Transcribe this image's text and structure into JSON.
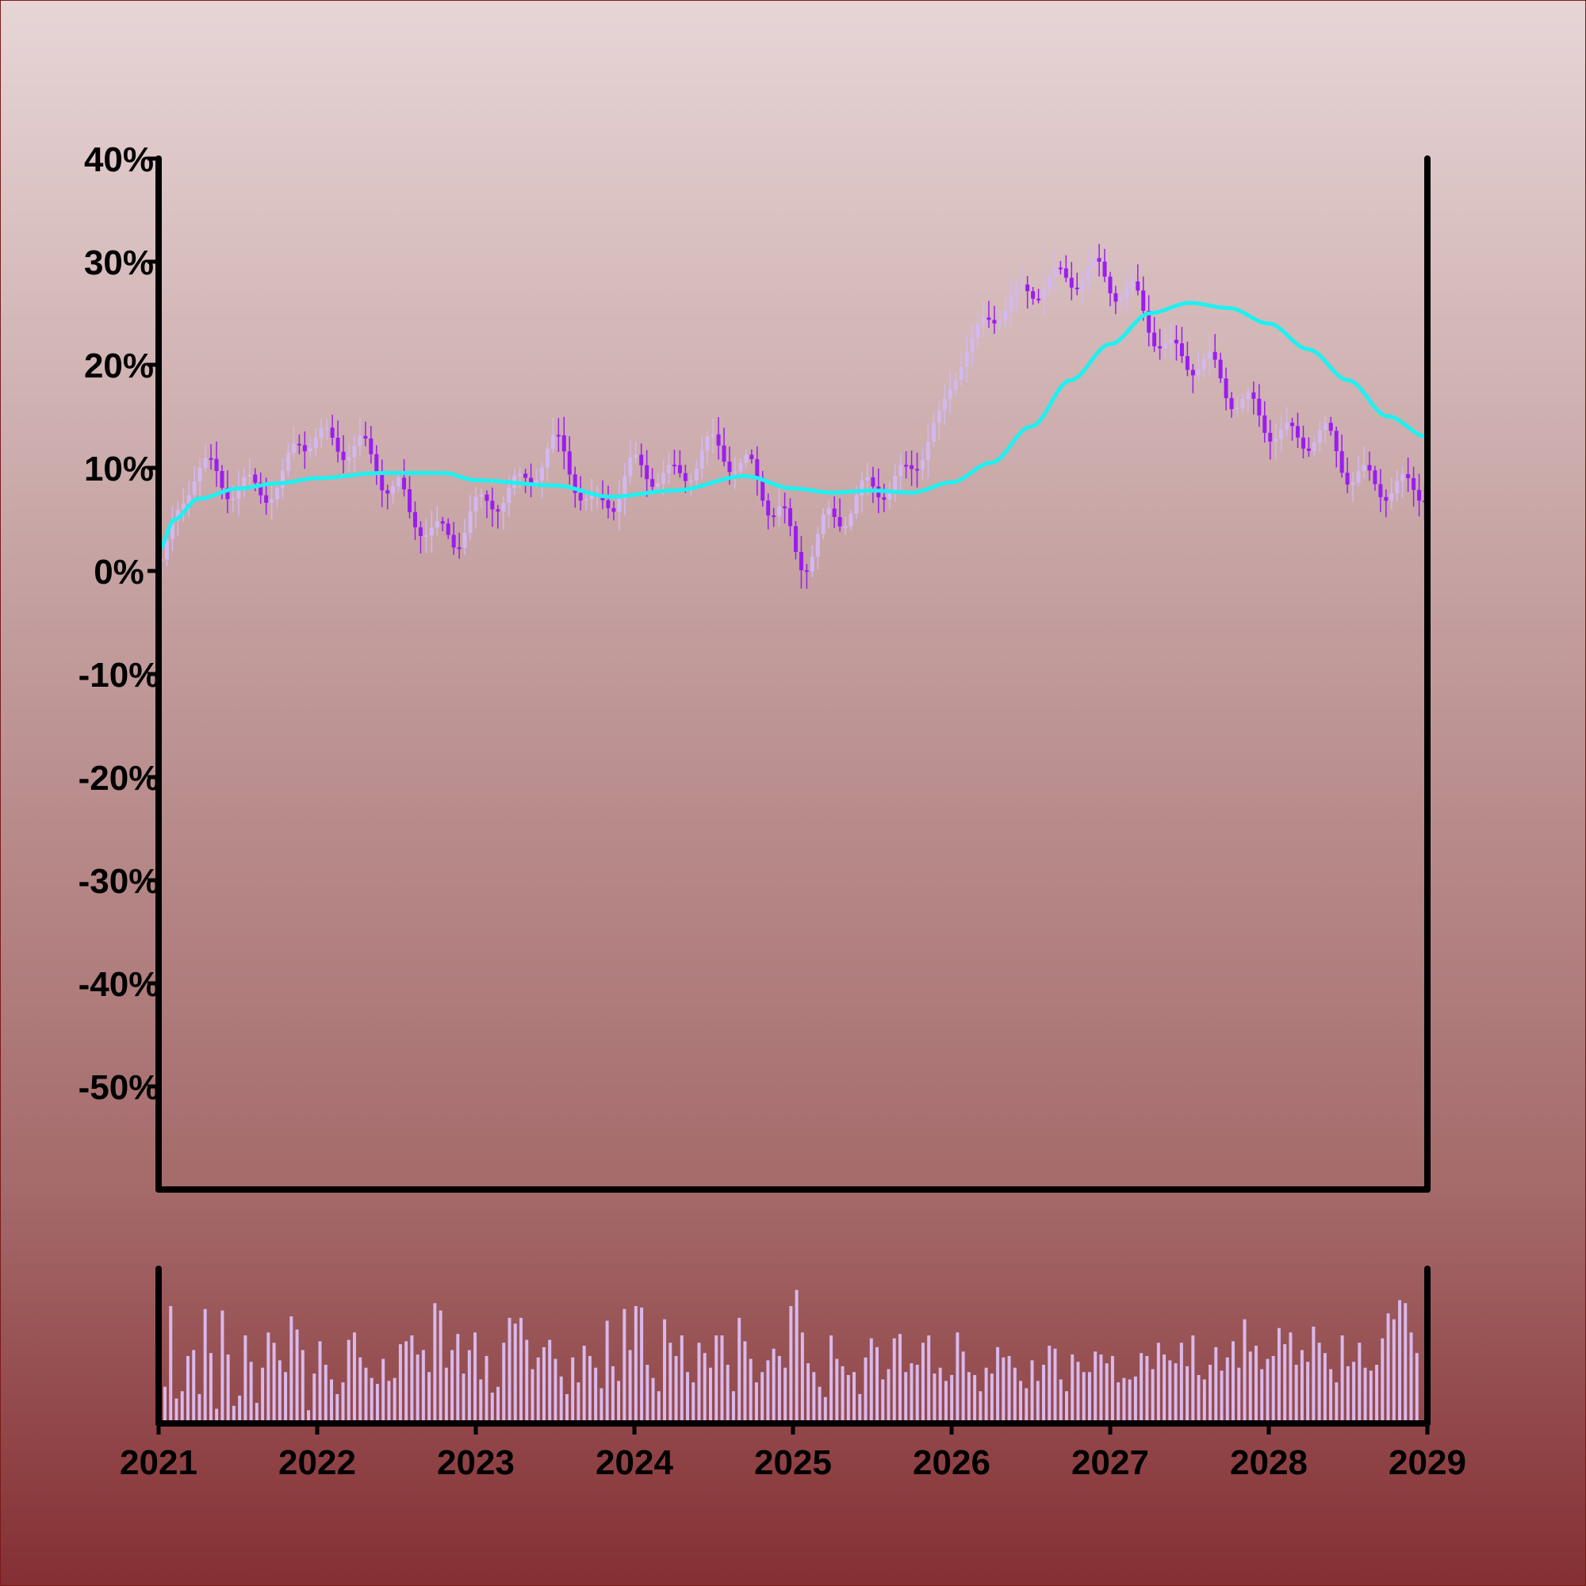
{
  "chart_data": {
    "type": "candlestick",
    "title": "",
    "xlabel": "",
    "ylabel": "",
    "x_range": [
      2021,
      2029
    ],
    "x_ticks": [
      "2021",
      "2022",
      "2023",
      "2024",
      "2025",
      "2026",
      "2027",
      "2028",
      "2029"
    ],
    "y_range": [
      -60,
      40
    ],
    "y_ticks": [
      "40%",
      "30%",
      "20%",
      "10%",
      "0%",
      "-10%",
      "-20%",
      "-30%",
      "-40%",
      "-50%"
    ],
    "y_tick_values": [
      40,
      30,
      20,
      10,
      0,
      -10,
      -20,
      -30,
      -40,
      -50
    ],
    "grid": false,
    "legend": "none",
    "colors": {
      "up_candle": "#d3b8f0",
      "down_candle": "#9b1cf2",
      "moving_average": "#1ff0f0",
      "volume": "#d9b9ec",
      "axes": "#000000"
    },
    "price_series": {
      "name": "",
      "x": [
        2021.0,
        2021.25,
        2021.5,
        2021.75,
        2021.9,
        2022.25,
        2022.5,
        2022.6,
        2022.85,
        2023.0,
        2023.25,
        2023.5,
        2023.75,
        2023.85,
        2024.0,
        2024.25,
        2024.5,
        2024.7,
        2024.9,
        2025.05,
        2025.25,
        2025.5,
        2025.7,
        2025.9,
        2026.1,
        2026.35,
        2026.6,
        2026.9,
        2027.1,
        2027.4,
        2027.6,
        2027.85,
        2028.1,
        2028.35,
        2028.55,
        2028.8,
        2029.0
      ],
      "close": [
        1,
        10,
        8,
        8,
        13,
        12,
        8,
        5,
        3,
        6,
        8,
        12,
        6,
        7,
        10,
        9,
        12,
        10,
        6,
        1,
        5,
        8,
        9,
        14,
        22,
        26,
        28,
        29,
        27,
        21,
        20,
        16,
        13,
        13,
        9,
        8,
        8
      ]
    },
    "moving_average": {
      "name": "",
      "x": [
        2021.0,
        2021.1,
        2021.25,
        2021.5,
        2021.75,
        2022.0,
        2022.4,
        2022.8,
        2023.0,
        2023.5,
        2023.85,
        2024.25,
        2024.7,
        2025.0,
        2025.25,
        2025.5,
        2025.75,
        2026.0,
        2026.25,
        2026.5,
        2026.75,
        2027.0,
        2027.25,
        2027.5,
        2027.75,
        2028.0,
        2028.25,
        2028.5,
        2028.75,
        2029.0
      ],
      "values": [
        2,
        5,
        7,
        8,
        8.5,
        9,
        9.5,
        9.5,
        8.8,
        8.3,
        7.2,
        7.8,
        9.2,
        8,
        7.6,
        7.8,
        7.6,
        8.6,
        10.5,
        14,
        18.5,
        22,
        25,
        26,
        25.5,
        24,
        21.5,
        18.5,
        15,
        13
      ]
    },
    "volume": {
      "name": "",
      "range": [
        0,
        1
      ],
      "values": [
        0.25,
        0.8,
        0.17,
        0.22,
        0.46,
        0.5,
        0.2,
        0.78,
        0.48,
        0.1,
        0.77,
        0.47,
        0.12,
        0.19,
        0.6,
        0.42,
        0.14,
        0.38,
        0.62,
        0.55,
        0.43,
        0.35,
        0.73,
        0.64,
        0.5,
        0.09,
        0.34,
        0.56,
        0.4,
        0.3,
        0.2,
        0.28,
        0.57,
        0.62,
        0.45,
        0.38,
        0.31,
        0.27,
        0.44,
        0.29,
        0.31,
        0.54,
        0.56,
        0.6,
        0.47,
        0.5,
        0.35,
        0.82,
        0.77,
        0.38,
        0.5,
        0.61,
        0.34,
        0.5,
        0.62,
        0.3,
        0.46,
        0.21,
        0.25,
        0.55,
        0.72,
        0.68,
        0.72,
        0.57,
        0.37,
        0.45,
        0.52,
        0.57,
        0.44,
        0.32,
        0.2,
        0.45,
        0.28,
        0.53,
        0.46,
        0.38,
        0.24,
        0.7,
        0.39,
        0.29,
        0.78,
        0.5,
        0.8,
        0.79,
        0.4,
        0.31,
        0.22,
        0.71,
        0.55,
        0.46,
        0.6,
        0.35,
        0.28,
        0.55,
        0.48,
        0.38,
        0.6,
        0.6,
        0.4,
        0.22,
        0.72,
        0.56,
        0.44,
        0.28,
        0.35,
        0.43,
        0.51,
        0.46,
        0.38,
        0.8,
        0.91,
        0.62,
        0.41,
        0.35,
        0.25,
        0.18,
        0.6,
        0.44,
        0.39,
        0.33,
        0.35,
        0.2,
        0.45,
        0.58,
        0.52,
        0.3,
        0.37,
        0.58,
        0.61,
        0.35,
        0.41,
        0.4,
        0.55,
        0.6,
        0.34,
        0.38,
        0.29,
        0.33,
        0.62,
        0.49,
        0.35,
        0.33,
        0.22,
        0.38,
        0.34,
        0.52,
        0.45,
        0.46,
        0.38,
        0.29,
        0.24,
        0.43,
        0.29,
        0.4,
        0.53,
        0.51,
        0.3,
        0.22,
        0.47,
        0.42,
        0.35,
        0.35,
        0.49,
        0.47,
        0.41,
        0.46,
        0.28,
        0.31,
        0.3,
        0.32,
        0.48,
        0.46,
        0.37,
        0.55,
        0.47,
        0.43,
        0.41,
        0.55,
        0.39,
        0.6,
        0.33,
        0.3,
        0.4,
        0.52,
        0.36,
        0.45,
        0.56,
        0.38,
        0.71,
        0.49,
        0.53,
        0.37,
        0.44,
        0.46,
        0.65,
        0.54,
        0.62,
        0.4,
        0.5,
        0.42,
        0.66,
        0.55,
        0.48,
        0.37,
        0.28,
        0.6,
        0.39,
        0.42,
        0.55,
        0.38,
        0.36,
        0.4,
        0.58,
        0.75,
        0.71,
        0.84,
        0.82,
        0.62,
        0.48
      ]
    }
  }
}
